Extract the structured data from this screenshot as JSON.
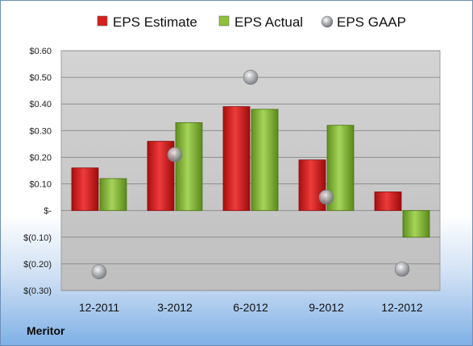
{
  "company_label": "Meritor",
  "colors": {
    "estimate": "#e02020",
    "actual": "#8fc03a",
    "gaap": "#a9abaf",
    "plot_bg_top": "#d4d4d4",
    "plot_bg_bottom": "#bfbfbf"
  },
  "chart_data": {
    "type": "bar",
    "categories": [
      "12-2011",
      "3-2012",
      "6-2012",
      "9-2012",
      "12-2012"
    ],
    "series": [
      {
        "name": "EPS Estimate",
        "kind": "bar",
        "color_key": "estimate",
        "values": [
          0.16,
          0.26,
          0.39,
          0.19,
          0.07
        ]
      },
      {
        "name": "EPS Actual",
        "kind": "bar",
        "color_key": "actual",
        "values": [
          0.12,
          0.33,
          0.38,
          0.32,
          -0.1
        ]
      },
      {
        "name": "EPS GAAP",
        "kind": "marker",
        "color_key": "gaap",
        "values": [
          -0.23,
          0.21,
          0.5,
          0.05,
          -0.22
        ]
      }
    ],
    "y_ticks": [
      {
        "value": 0.6,
        "label": "$0.60"
      },
      {
        "value": 0.5,
        "label": "$0.50"
      },
      {
        "value": 0.4,
        "label": "$0.40"
      },
      {
        "value": 0.3,
        "label": "$0.30"
      },
      {
        "value": 0.2,
        "label": "$0.20"
      },
      {
        "value": 0.1,
        "label": "$0.10"
      },
      {
        "value": 0.0,
        "label": "$-"
      },
      {
        "value": -0.1,
        "label": "$(0.10)"
      },
      {
        "value": -0.2,
        "label": "$(0.20)"
      },
      {
        "value": -0.3,
        "label": "$(0.30)"
      }
    ],
    "ylim": [
      -0.3,
      0.6
    ],
    "grid": true,
    "legend_position": "top"
  }
}
